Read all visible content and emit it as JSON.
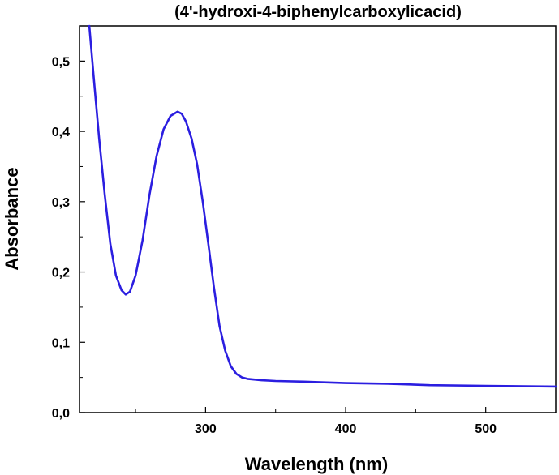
{
  "chart_data": {
    "type": "line",
    "title": "(4'-hydroxi-4-biphenylcarboxylicacid)",
    "xlabel": "Wavelength (nm)",
    "ylabel": "Absorbance",
    "xlim": [
      210,
      550
    ],
    "ylim": [
      0.0,
      0.55
    ],
    "x_ticks": [
      300,
      400,
      500
    ],
    "x_tick_labels": [
      "300",
      "400",
      "500"
    ],
    "y_ticks": [
      0.0,
      0.1,
      0.2,
      0.3,
      0.4,
      0.5
    ],
    "y_tick_labels": [
      "0,0",
      "0,1",
      "0,2",
      "0,3",
      "0,4",
      "0,5"
    ],
    "grid": false,
    "legend": "none",
    "series": [
      {
        "color": "#2b1ee0",
        "x": [
          217,
          220,
          224,
          228,
          232,
          236,
          240,
          243,
          246,
          250,
          255,
          260,
          265,
          270,
          275,
          280,
          283,
          286,
          290,
          294,
          298,
          302,
          306,
          310,
          314,
          318,
          322,
          326,
          330,
          340,
          350,
          370,
          400,
          430,
          460,
          500,
          550
        ],
        "y": [
          0.55,
          0.48,
          0.39,
          0.31,
          0.24,
          0.195,
          0.174,
          0.168,
          0.172,
          0.195,
          0.245,
          0.31,
          0.365,
          0.403,
          0.422,
          0.428,
          0.425,
          0.414,
          0.39,
          0.353,
          0.3,
          0.24,
          0.178,
          0.123,
          0.088,
          0.066,
          0.055,
          0.05,
          0.048,
          0.046,
          0.045,
          0.044,
          0.042,
          0.041,
          0.039,
          0.038,
          0.037
        ]
      }
    ]
  }
}
